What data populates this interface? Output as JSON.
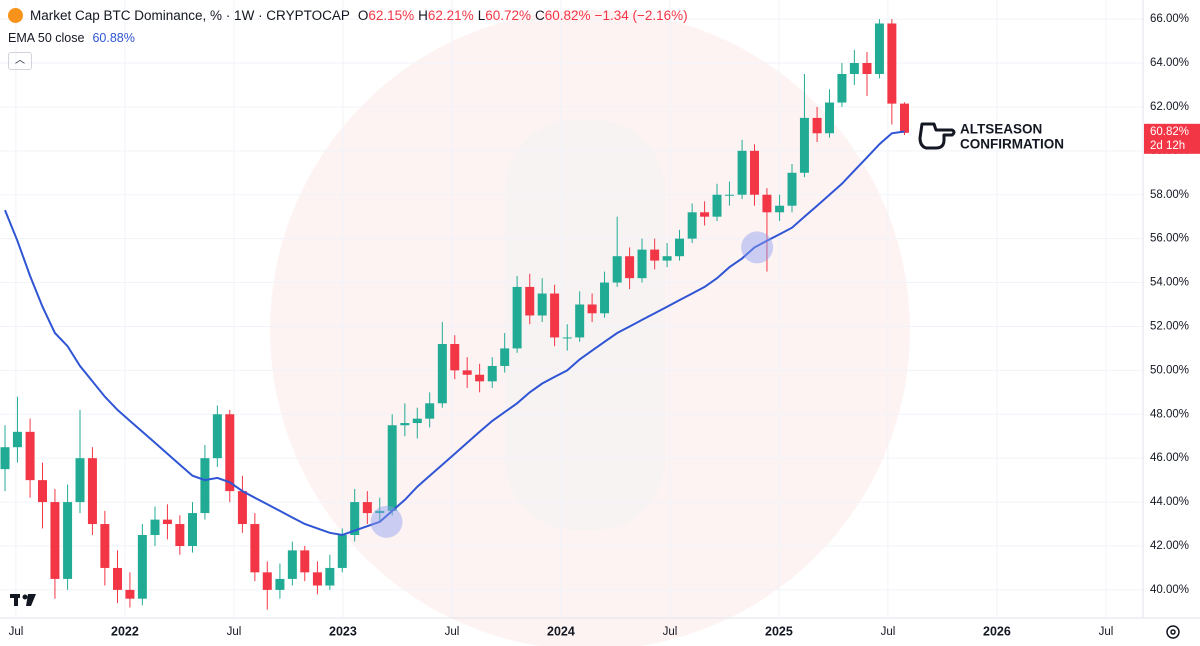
{
  "chart_data": {
    "type": "candlestick",
    "title": "Market Cap BTC Dominance, % · 1W · CRYPTOCAP",
    "ohlc_legend": [
      {
        "key": "O",
        "label": "62.15%"
      },
      {
        "key": "H",
        "label": "62.21%"
      },
      {
        "key": "L",
        "label": "60.72%"
      },
      {
        "key": "C",
        "label": "60.82%"
      }
    ],
    "change_label": "−1.34 (−2.16%)",
    "indicator_legend": {
      "name": "EMA 50 close",
      "label": "60.88%"
    },
    "annotation": [
      "ALTSEASON",
      "CONFIRMATION"
    ],
    "price_tag": {
      "value": 60.82,
      "label": "60.82%",
      "countdown": "2d 12h"
    },
    "x": [
      2021.45,
      2021.507,
      2021.565,
      2021.622,
      2021.679,
      2021.737,
      2021.794,
      2021.851,
      2021.908,
      2021.966,
      2022.023,
      2022.08,
      2022.138,
      2022.195,
      2022.252,
      2022.31,
      2022.367,
      2022.424,
      2022.481,
      2022.539,
      2022.596,
      2022.653,
      2022.711,
      2022.768,
      2022.825,
      2022.883,
      2022.94,
      2022.997,
      2023.054,
      2023.112,
      2023.169,
      2023.226,
      2023.284,
      2023.341,
      2023.398,
      2023.456,
      2023.513,
      2023.57,
      2023.627,
      2023.685,
      2023.742,
      2023.799,
      2023.857,
      2023.914,
      2023.971,
      2024.029,
      2024.086,
      2024.143,
      2024.2,
      2024.258,
      2024.315,
      2024.372,
      2024.43,
      2024.487,
      2024.544,
      2024.602,
      2024.659,
      2024.716,
      2024.773,
      2024.831,
      2024.888,
      2024.945,
      2025.003,
      2025.06,
      2025.117,
      2025.175,
      2025.232,
      2025.289,
      2025.346,
      2025.404,
      2025.461,
      2025.518,
      2025.576
    ],
    "open": [
      45.5,
      46.5,
      47.2,
      45,
      44,
      40.5,
      44,
      46,
      43,
      41,
      40,
      39.6,
      42.5,
      43.2,
      43,
      42,
      43.5,
      46,
      48,
      44.5,
      43,
      40.8,
      40,
      40.5,
      41.8,
      40.8,
      40.2,
      41,
      42.5,
      44,
      43.5,
      43.6,
      47.5,
      47.6,
      47.8,
      48.5,
      51.2,
      50,
      49.8,
      49.5,
      50.2,
      51,
      53.8,
      52.5,
      53.5,
      51.5,
      51.5,
      53,
      52.6,
      54,
      55.2,
      54.2,
      55.5,
      55,
      55.2,
      56,
      57.2,
      57,
      58,
      58,
      60,
      58,
      57.2,
      57.5,
      59,
      61.5,
      60.8,
      62.2,
      63.5,
      64,
      63.5,
      65.8,
      62.15
    ],
    "high": [
      47.5,
      48.8,
      47.8,
      45.8,
      44.6,
      44.8,
      48.2,
      46.5,
      43.6,
      41.8,
      40.8,
      43,
      43.8,
      43.9,
      43.4,
      44,
      46.6,
      48.4,
      48.2,
      45.2,
      43.5,
      41.3,
      41.2,
      42.2,
      42,
      41.3,
      41.6,
      42.8,
      44.6,
      44.5,
      44.2,
      48,
      48.5,
      48.3,
      49,
      52.2,
      51.6,
      50.6,
      50.3,
      50.6,
      51.7,
      54.3,
      54.4,
      54.2,
      53.9,
      52.1,
      53.6,
      53.5,
      54.5,
      57,
      55.6,
      56,
      56,
      55.8,
      56.4,
      57.6,
      57.7,
      58.5,
      58.6,
      60.5,
      60.3,
      58.3,
      58,
      59.4,
      63.5,
      62,
      62.8,
      64,
      64.6,
      64.5,
      66,
      66,
      62.21
    ],
    "low": [
      44.5,
      45.8,
      44.2,
      42.8,
      39.6,
      40,
      43.5,
      42.5,
      40.2,
      39.4,
      39.2,
      39.3,
      42,
      42.3,
      41.6,
      41.7,
      43.2,
      45.6,
      44,
      42.6,
      40.4,
      39.1,
      39.6,
      40.2,
      40.4,
      39.8,
      40,
      40.8,
      42.2,
      43,
      43.1,
      43.4,
      47,
      46.9,
      47.4,
      48.3,
      49.6,
      49.2,
      49,
      49.2,
      49.9,
      50.8,
      52.1,
      52.2,
      51.1,
      50.9,
      51.3,
      52.2,
      52.4,
      53.8,
      53.7,
      54,
      54.6,
      54.7,
      55,
      55.8,
      56.6,
      56.8,
      57.5,
      57.8,
      57.5,
      54.5,
      56.8,
      57.2,
      58.8,
      60.4,
      60.6,
      62,
      63,
      62.5,
      63.3,
      61.2,
      60.72
    ],
    "close": [
      46.5,
      47.2,
      45,
      44,
      40.5,
      44,
      46,
      43,
      41,
      40,
      39.6,
      42.5,
      43.2,
      43,
      42,
      43.5,
      46,
      48,
      44.5,
      43,
      40.8,
      40,
      40.5,
      41.8,
      40.8,
      40.2,
      41,
      42.5,
      44,
      43.5,
      43.6,
      47.5,
      47.6,
      47.8,
      48.5,
      51.2,
      50,
      49.8,
      49.5,
      50.2,
      51,
      53.8,
      52.5,
      53.5,
      51.5,
      51.5,
      53,
      52.6,
      54,
      55.2,
      54.2,
      55.5,
      55,
      55.2,
      56,
      57.2,
      57,
      58,
      58,
      60,
      58,
      57.2,
      57.5,
      59,
      61.5,
      60.8,
      62.2,
      63.5,
      64,
      63.5,
      65.8,
      62.15,
      60.82
    ],
    "up_color": "#22ab94",
    "down_color": "#f23645",
    "ema": {
      "color": "#2f55d4",
      "values": [
        57.3,
        55.9,
        54.3,
        52.9,
        51.7,
        51.1,
        50.2,
        49.5,
        48.8,
        48.2,
        47.7,
        47.2,
        46.7,
        46.2,
        45.7,
        45.2,
        45,
        45.1,
        44.9,
        44.5,
        44.2,
        43.9,
        43.6,
        43.3,
        43,
        42.8,
        42.6,
        42.5,
        42.7,
        42.9,
        43.1,
        43.6,
        44.1,
        44.7,
        45.2,
        45.7,
        46.2,
        46.7,
        47.2,
        47.7,
        48.1,
        48.5,
        49,
        49.4,
        49.7,
        50,
        50.5,
        50.9,
        51.3,
        51.7,
        52,
        52.3,
        52.6,
        52.9,
        53.2,
        53.5,
        53.8,
        54.2,
        54.7,
        55.1,
        55.6,
        55.9,
        56.2,
        56.5,
        57,
        57.5,
        58,
        58.5,
        59.1,
        59.7,
        60.3,
        60.8,
        60.88
      ]
    },
    "highlights": [
      {
        "x": 2023.2,
        "y": 43.1
      },
      {
        "x": 2024.9,
        "y": 55.6
      }
    ],
    "xlim": [
      2021.427,
      2026.67
    ],
    "ylim": [
      38.72,
      66.87
    ],
    "xticks": [
      {
        "value": 2021.5,
        "label": "Jul"
      },
      2022,
      {
        "value": 2022.5,
        "label": "Jul"
      },
      2023,
      {
        "value": 2023.5,
        "label": "Jul"
      },
      2024,
      {
        "value": 2024.5,
        "label": "Jul"
      },
      2025,
      {
        "value": 2025.5,
        "label": "Jul"
      },
      2026,
      {
        "value": 2026.5,
        "label": "Jul"
      }
    ],
    "yticks": [
      {
        "value": 40,
        "label": "40.00%"
      },
      {
        "value": 42,
        "label": "42.00%"
      },
      {
        "value": 44,
        "label": "44.00%"
      },
      {
        "value": 46,
        "label": "46.00%"
      },
      {
        "value": 48,
        "label": "48.00%"
      },
      {
        "value": 50,
        "label": "50.00%"
      },
      {
        "value": 52,
        "label": "52.00%"
      },
      {
        "value": 54,
        "label": "54.00%"
      },
      {
        "value": 56,
        "label": "56.00%"
      },
      {
        "value": 58,
        "label": "58.00%"
      },
      {
        "value": 60,
        "label": "60.00%"
      },
      {
        "value": 62,
        "label": "62.00%"
      },
      {
        "value": 64,
        "label": "64.00%"
      },
      {
        "value": 66,
        "label": "66.00%"
      }
    ],
    "grid": true
  }
}
